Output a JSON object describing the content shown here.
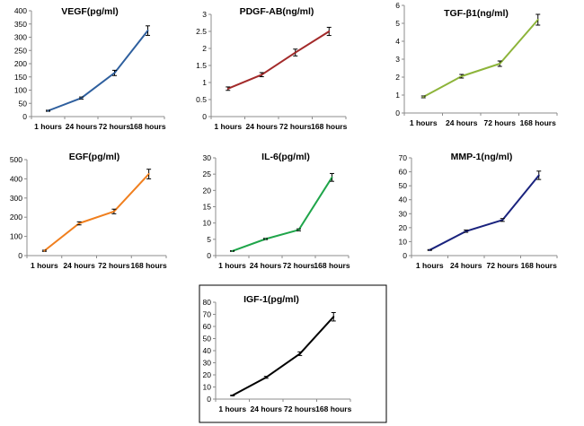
{
  "chart_data": [
    {
      "type": "line",
      "title": "VEGF(pg/ml)",
      "categories": [
        "1 hours",
        "24 hours",
        "72 hours",
        "168 hours"
      ],
      "values": [
        22,
        70,
        165,
        325
      ],
      "errors": [
        2,
        4,
        10,
        18
      ],
      "ylim": [
        0,
        400
      ],
      "yticks": [
        0,
        50,
        100,
        150,
        200,
        250,
        300,
        350,
        400
      ],
      "color": "#2E5F9E",
      "bordered": false
    },
    {
      "type": "line",
      "title": "PDGF-AB(ng/ml)",
      "categories": [
        "1 hours",
        "24 hours",
        "72 hours",
        "168 hours"
      ],
      "values": [
        0.82,
        1.23,
        1.88,
        2.5
      ],
      "errors": [
        0.05,
        0.06,
        0.1,
        0.12
      ],
      "ylim": [
        0,
        3
      ],
      "yticks": [
        0,
        0.5,
        1,
        1.5,
        2,
        2.5,
        3
      ],
      "color": "#A32A2A",
      "bordered": false
    },
    {
      "type": "line",
      "title": "TGF-β1(ng/ml)",
      "categories": [
        "1 hours",
        "24 hours",
        "72 hours",
        "168 hours"
      ],
      "values": [
        0.9,
        2.05,
        2.75,
        5.2
      ],
      "errors": [
        0.05,
        0.1,
        0.15,
        0.3
      ],
      "ylim": [
        0,
        6
      ],
      "yticks": [
        0,
        1,
        2,
        3,
        4,
        5,
        6
      ],
      "color": "#8DB43A",
      "bordered": false
    },
    {
      "type": "line",
      "title": "EGF(pg/ml)",
      "categories": [
        "1 hours",
        "24 hours",
        "72 hours",
        "168 hours"
      ],
      "values": [
        25,
        168,
        230,
        425
      ],
      "errors": [
        3,
        8,
        12,
        25
      ],
      "ylim": [
        0,
        500
      ],
      "yticks": [
        0,
        100,
        200,
        300,
        400,
        500
      ],
      "color": "#F07F1E",
      "bordered": false
    },
    {
      "type": "line",
      "title": "IL-6(pg/ml)",
      "categories": [
        "1 hours",
        "24 hours",
        "72 hours",
        "168 hours"
      ],
      "values": [
        1.4,
        5.1,
        7.9,
        24
      ],
      "errors": [
        0.1,
        0.2,
        0.3,
        1.2
      ],
      "ylim": [
        0,
        30
      ],
      "yticks": [
        0,
        5,
        10,
        15,
        20,
        25,
        30
      ],
      "color": "#1FA54A",
      "bordered": false
    },
    {
      "type": "line",
      "title": "MMP-1(ng/ml)",
      "categories": [
        "1 hours",
        "24 hours",
        "72 hours",
        "168 hours"
      ],
      "values": [
        4,
        17.5,
        25.5,
        57.5
      ],
      "errors": [
        0.3,
        0.8,
        1,
        3
      ],
      "ylim": [
        0,
        70
      ],
      "yticks": [
        0,
        10,
        20,
        30,
        40,
        50,
        60,
        70
      ],
      "color": "#1A237E",
      "bordered": false
    },
    {
      "type": "line",
      "title": "IGF-1(pg/ml)",
      "categories": [
        "1 hours",
        "24 hours",
        "72 hours",
        "168 hours"
      ],
      "values": [
        3,
        18,
        37.5,
        68
      ],
      "errors": [
        0.3,
        0.8,
        1.5,
        3.5
      ],
      "ylim": [
        0,
        80
      ],
      "yticks": [
        0,
        10,
        20,
        30,
        40,
        50,
        60,
        70,
        80
      ],
      "color": "#000000",
      "bordered": true
    }
  ]
}
